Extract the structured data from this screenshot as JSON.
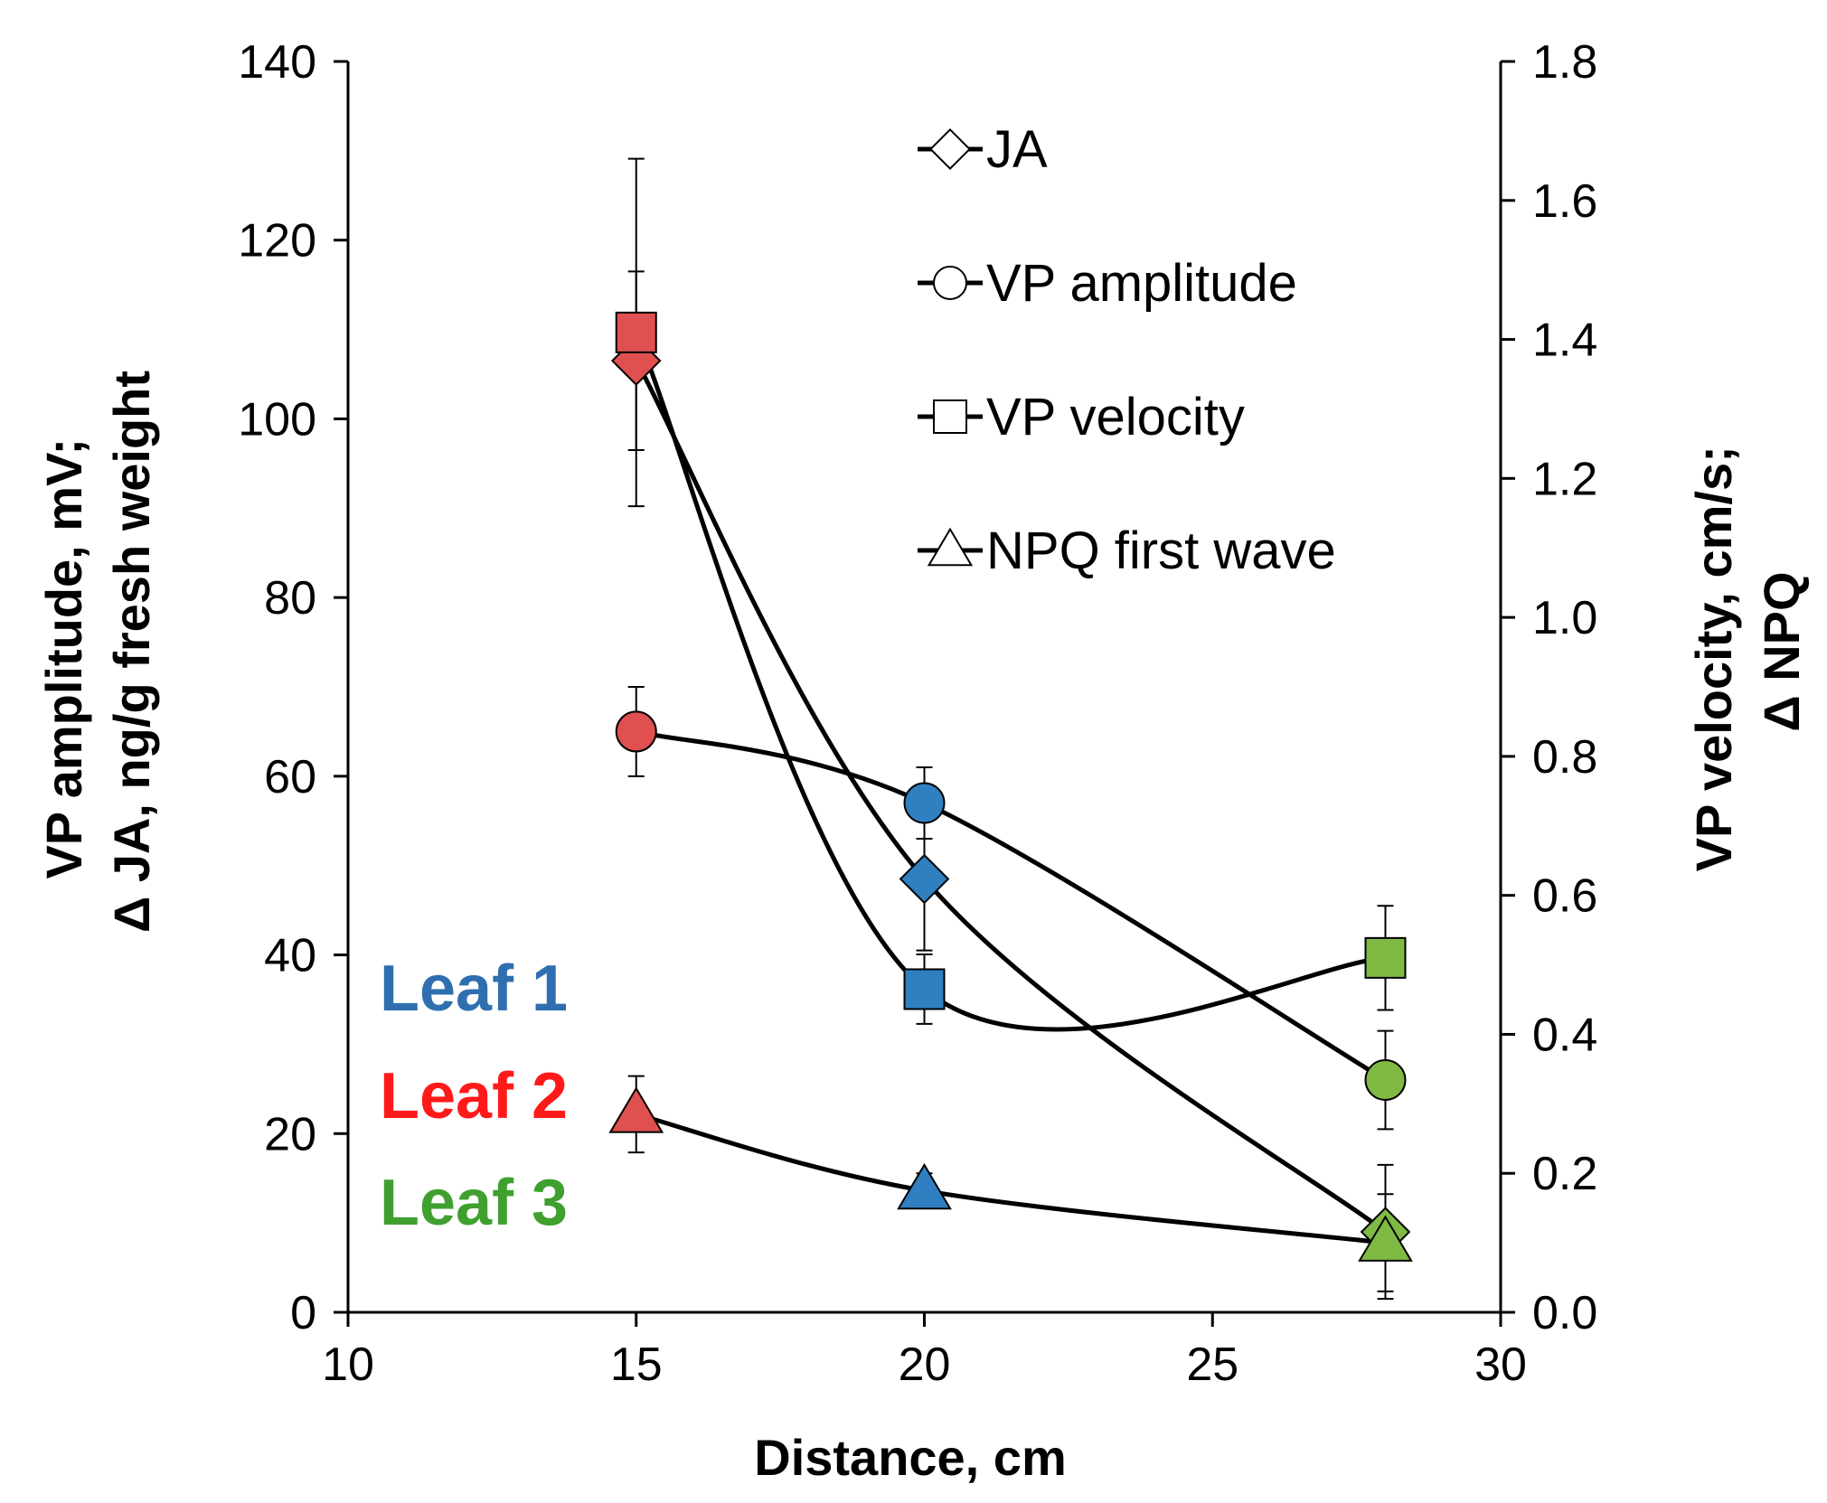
{
  "chart_data": {
    "type": "scatter",
    "xlabel": "Distance, cm",
    "ylabel_left": [
      "VP amplitude, mV;",
      "Δ JA, ng/g fresh weight"
    ],
    "ylabel_right": [
      "VP velocity, cm/s;",
      "Δ NPQ"
    ],
    "xlim": [
      10,
      30
    ],
    "ylim_left": [
      0,
      140
    ],
    "ylim_right": [
      0,
      1.8
    ],
    "x_ticks": [
      "10",
      "15",
      "20",
      "25",
      "30"
    ],
    "y_left_ticks": [
      "0",
      "20",
      "40",
      "60",
      "80",
      "100",
      "120",
      "140"
    ],
    "y_right_ticks": [
      "0.0",
      "0.2",
      "0.4",
      "0.6",
      "0.8",
      "1.0",
      "1.2",
      "1.4",
      "1.6",
      "1.8"
    ],
    "x": [
      15,
      20,
      28
    ],
    "leaf_colors": [
      "#e05050",
      "#2f7fc1",
      "#7fba45"
    ],
    "leaves": [
      {
        "label": "Leaf 1",
        "color": "#2f6fb0"
      },
      {
        "label": "Leaf 2",
        "color": "#ff1a1a"
      },
      {
        "label": "Leaf 3",
        "color": "#3fa02f"
      }
    ],
    "series": [
      {
        "name": "JA",
        "marker": "diamond",
        "axis": "left",
        "values": [
          106.5,
          48.5,
          9
        ],
        "errors": [
          10,
          8,
          7.5
        ]
      },
      {
        "name": "VP amplitude",
        "marker": "circle",
        "axis": "left",
        "values": [
          65,
          57,
          26
        ],
        "errors": [
          5,
          4,
          5.5
        ]
      },
      {
        "name": "VP velocity",
        "marker": "square",
        "axis": "right",
        "values": [
          1.41,
          0.465,
          0.51
        ],
        "errors": [
          0.25,
          0.05,
          0.075
        ]
      },
      {
        "name": "NPQ first wave",
        "marker": "triangle",
        "axis": "right",
        "values": [
          0.285,
          0.175,
          0.1
        ],
        "errors": [
          0.055,
          0.025,
          0.07
        ]
      }
    ]
  }
}
